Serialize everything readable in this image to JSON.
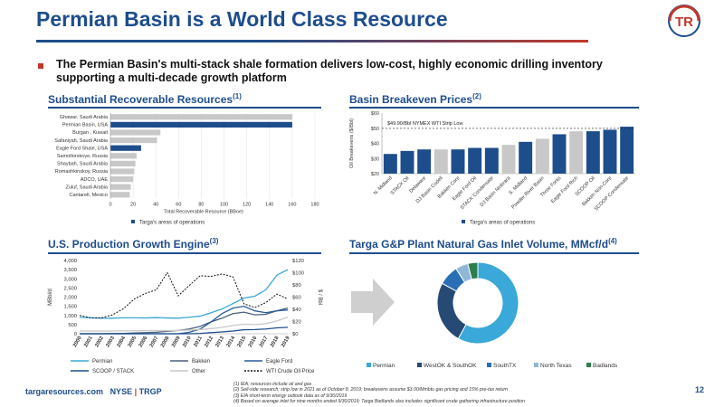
{
  "title": "Permian Basin is a World Class Resource",
  "bullet": "The Permian Basin's multi-stack shale formation delivers low-cost, highly economic drilling inventory supporting a multi-decade growth platform",
  "logo_text": "TR",
  "colors": {
    "navy": "#1e4d8c",
    "red": "#c0392b",
    "cyan": "#3aa8d8",
    "dark": "#264a73",
    "gray": "#c8c8c8"
  },
  "sections": {
    "recoverable": {
      "title": "Substantial Recoverable Resources",
      "sup": "(1)"
    },
    "breakeven": {
      "title": "Basin Breakeven Prices",
      "sup": "(2)"
    },
    "production": {
      "title": "U.S. Production Growth Engine",
      "sup": "(3)"
    },
    "inlet": {
      "title": "Targa G&P Plant Natural Gas Inlet Volume, MMcf/d",
      "sup": "(4)"
    }
  },
  "chart_data": [
    {
      "type": "bar",
      "orientation": "horizontal",
      "categories": [
        "Ghawar, Saudi Arabia",
        "Permian Basin, USA",
        "Burgan , Kuwait",
        "Safaniyah, Saudi Arabia",
        "Eagle Ford Shale, USA",
        "Samotlorskoye, Russia",
        "Shaybah, Saudi Arabia",
        "Romashkinskoy, Russia",
        "ADCO, UAE",
        "Zuluf, Saudi Arabia",
        "Cantarell, Mexico"
      ],
      "values": [
        160,
        160,
        44,
        41,
        27,
        23,
        22,
        21,
        20,
        18,
        17
      ],
      "highlight": [
        false,
        true,
        false,
        false,
        true,
        false,
        false,
        false,
        false,
        false,
        false
      ],
      "xlabel": "Total Recoverable Resource (BBoe)",
      "xticks": [
        "0",
        "20",
        "40",
        "60",
        "80",
        "100",
        "120",
        "140",
        "160",
        "180"
      ],
      "xlim": [
        0,
        180
      ],
      "legend": "Targa's areas of operations"
    },
    {
      "type": "bar",
      "categories": [
        "N. Midland",
        "STACK Oil",
        "Delaware",
        "DJ Basin Codell",
        "Bakken Core",
        "Eagle Ford Oil",
        "STACK Condensate",
        "DJ Basin Niobrara",
        "S. Midland",
        "Powder River Basin",
        "Three Forks",
        "Eagle Ford Rich",
        "SCOOP Oil",
        "Bakken Non-Core",
        "SCOOP Condensate"
      ],
      "values": [
        33,
        35,
        36,
        36,
        36,
        37,
        37,
        39,
        41,
        43,
        46,
        48,
        48,
        49,
        51
      ],
      "highlight": [
        true,
        true,
        true,
        false,
        true,
        true,
        true,
        false,
        true,
        false,
        true,
        false,
        true,
        true,
        true
      ],
      "ylabel": "Oil Breakevens ($/Bbl)",
      "yticks": [
        "$20",
        "$30",
        "$40",
        "$50",
        "$60"
      ],
      "ylim": [
        20,
        60
      ],
      "reference_line": {
        "value": 49.9,
        "label": "$49.90/Bbl NYMEX WTI Strip Low"
      },
      "legend": "Targa's areas of operations"
    },
    {
      "type": "line",
      "x": [
        "2000",
        "2001",
        "2002",
        "2003",
        "2004",
        "2005",
        "2006",
        "2007",
        "2008",
        "2009",
        "2010",
        "2011",
        "2012",
        "2013",
        "2014",
        "2015",
        "2016",
        "2017",
        "2018",
        "2019"
      ],
      "ylabel": "MBbl/d",
      "y2label": "$ / Bbl",
      "ylim": [
        0,
        4000
      ],
      "y2lim": [
        0,
        120
      ],
      "yticks": [
        "0",
        "500",
        "1,000",
        "1,500",
        "2,000",
        "2,500",
        "3,000",
        "3,500",
        "4,000"
      ],
      "y2ticks": [
        "$0",
        "$20",
        "$40",
        "$60",
        "$80",
        "$100",
        "$120"
      ],
      "series": [
        {
          "name": "Permian",
          "color": "#3aa8d8",
          "axis": "left",
          "values": [
            900,
            870,
            850,
            850,
            870,
            870,
            860,
            880,
            860,
            850,
            900,
            960,
            1150,
            1350,
            1650,
            1950,
            2050,
            2400,
            3200,
            3500
          ]
        },
        {
          "name": "Bakken",
          "color": "#4a5f7a",
          "axis": "left",
          "values": [
            0,
            0,
            0,
            10,
            20,
            40,
            60,
            80,
            130,
            180,
            260,
            400,
            650,
            850,
            1100,
            1180,
            1030,
            1060,
            1250,
            1400
          ]
        },
        {
          "name": "Eagle Ford",
          "color": "#2a5b9b",
          "axis": "left",
          "values": [
            0,
            0,
            0,
            0,
            0,
            0,
            0,
            0,
            0,
            0,
            80,
            250,
            650,
            1100,
            1400,
            1500,
            1250,
            1150,
            1250,
            1300
          ]
        },
        {
          "name": "SCOOP / STACK",
          "color": "#1e4d8c",
          "axis": "left",
          "values": [
            0,
            0,
            0,
            0,
            0,
            0,
            0,
            0,
            0,
            0,
            0,
            20,
            60,
            100,
            150,
            220,
            230,
            260,
            320,
            350
          ]
        },
        {
          "name": "Other",
          "color": "#c8c8c8",
          "axis": "left",
          "values": [
            150,
            150,
            150,
            150,
            160,
            160,
            170,
            170,
            170,
            180,
            200,
            230,
            280,
            350,
            450,
            520,
            500,
            550,
            700,
            900
          ]
        },
        {
          "name": "WTI Crude Oil Price",
          "color": "#111111",
          "axis": "right",
          "dashed": true,
          "values": [
            30,
            26,
            26,
            31,
            41,
            57,
            66,
            72,
            100,
            62,
            79,
            95,
            94,
            98,
            93,
            49,
            43,
            51,
            65,
            57
          ]
        }
      ]
    },
    {
      "type": "pie",
      "donut": true,
      "categories": [
        "Permian",
        "WestOK & SouthOK",
        "SouthTX",
        "North Texas",
        "Badlands"
      ],
      "values": [
        58,
        25,
        8,
        5,
        4
      ],
      "colors": [
        "#3aa8d8",
        "#264a73",
        "#2a6fb5",
        "#8fb8d8",
        "#2e7d4f"
      ]
    }
  ],
  "footer": {
    "url": "targaresources.com",
    "ticker": "NYSE",
    "symbol": "TRGP",
    "page": "12"
  },
  "footnotes": [
    "(1)    IEA; resources include oil and gas",
    "(2)    Sell-side research; strip low in 2021 as of October 8, 2019; breakevens assume $3.00/Mmbtu gas pricing and 15% pre-tax return",
    "(3)    EIA short-term energy outlook data as of 9/30/2019",
    "(4)    Based on average inlet for nine months ended 9/30/2019; Targa Badlands also includes significant crude gathering infrastructure position"
  ]
}
